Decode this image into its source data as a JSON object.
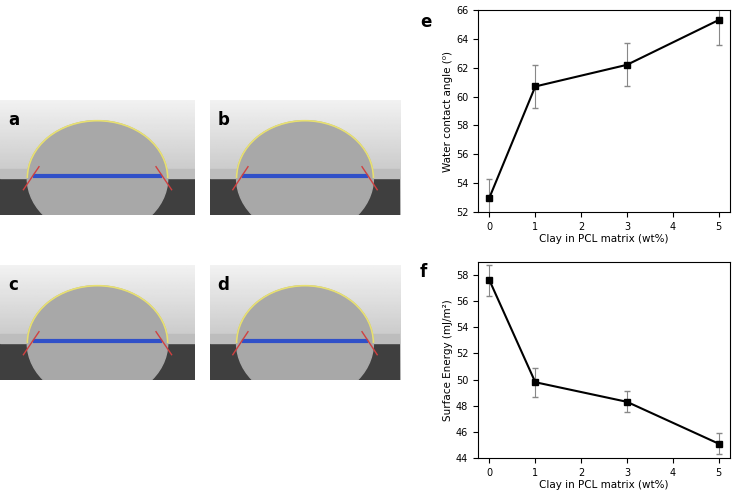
{
  "image_panels": [
    "a",
    "b",
    "c",
    "d"
  ],
  "chart_data": [
    {
      "type": "line",
      "panel_label": "e",
      "x_label": "Clay in PCL matrix (wt%)",
      "y_label": "Water contact angle (⁰)",
      "x": [
        0,
        1,
        3,
        5
      ],
      "values": [
        53.0,
        60.7,
        62.2,
        65.3
      ],
      "errors": [
        1.3,
        1.5,
        1.5,
        1.7
      ],
      "color": "#000000",
      "marker": "square",
      "xlim": [
        -0.25,
        5.25
      ],
      "xticks": [
        0,
        1,
        2,
        3,
        4,
        5
      ],
      "ylim": [
        52,
        66
      ],
      "yticks": [
        52,
        54,
        56,
        58,
        60,
        62,
        64,
        66
      ],
      "grid": false
    },
    {
      "type": "line",
      "panel_label": "f",
      "x_label": "Clay in PCL matrix (wt%)",
      "y_label": "Surface Energy (mJ/m²)",
      "x": [
        0,
        1,
        3,
        5
      ],
      "values": [
        57.6,
        49.8,
        48.3,
        45.1
      ],
      "errors": [
        1.2,
        1.1,
        0.8,
        0.8
      ],
      "color": "#000000",
      "marker": "square",
      "xlim": [
        -0.25,
        5.25
      ],
      "xticks": [
        0,
        1,
        2,
        3,
        4,
        5
      ],
      "ylim": [
        44,
        59
      ],
      "yticks": [
        44,
        46,
        48,
        50,
        52,
        54,
        56,
        58
      ],
      "grid": false
    }
  ]
}
